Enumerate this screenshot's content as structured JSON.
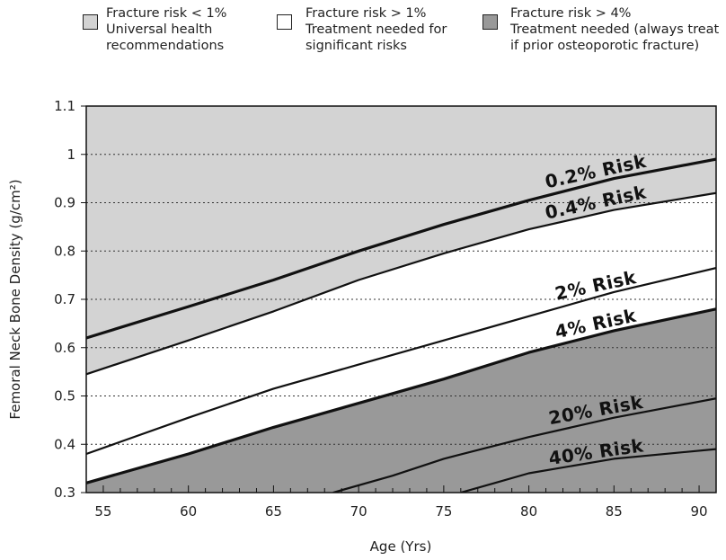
{
  "chart_data": {
    "type": "area",
    "xlabel": "Age (Yrs)",
    "ylabel": "Femoral Neck Bone Density (g/cm²)",
    "xlim": [
      54,
      91
    ],
    "ylim": [
      0.3,
      1.1
    ],
    "x_ticks": [
      55,
      60,
      65,
      70,
      75,
      80,
      85,
      90
    ],
    "x_tick_labels": [
      "55",
      "60",
      "65",
      "70",
      "75",
      "80",
      "85",
      "90"
    ],
    "y_ticks": [
      0.3,
      0.4,
      0.5,
      0.6,
      0.7,
      0.8,
      0.9,
      1,
      1.1
    ],
    "y_tick_labels": [
      "0.3",
      "0.4",
      "0.5",
      "0.6",
      "0.7",
      "0.8",
      "0.9",
      "1",
      "1.1"
    ],
    "grid": "horizontal dotted",
    "legend": [
      {
        "line1": "Fracture risk < 1%",
        "line2": "Universal health",
        "line3": "recommendations",
        "color": "#d3d3d3"
      },
      {
        "line1": "Fracture risk > 1%",
        "line2": "Treatment needed for",
        "line3": "significant risks",
        "color": "#ffffff"
      },
      {
        "line1": "Fracture risk > 4%",
        "line2": "Treatment needed (always treat",
        "line3": "if prior osteoporotic fracture)",
        "color": "#999999"
      }
    ],
    "colors": {
      "low": "#d3d3d3",
      "medium": "#ffffff",
      "high": "#999999",
      "line": "#111111"
    },
    "series": [
      {
        "name": "0.2% Risk",
        "label": "0.2% Risk",
        "x": [
          54,
          60,
          65,
          70,
          75,
          80,
          85,
          91
        ],
        "y": [
          0.62,
          0.685,
          0.74,
          0.8,
          0.855,
          0.905,
          0.95,
          0.99
        ]
      },
      {
        "name": "0.4% Risk",
        "label": "0.4% Risk",
        "x": [
          54,
          60,
          65,
          70,
          75,
          80,
          85,
          91
        ],
        "y": [
          0.545,
          0.615,
          0.675,
          0.74,
          0.795,
          0.845,
          0.885,
          0.92
        ]
      },
      {
        "name": "2% Risk",
        "label": "2% Risk",
        "x": [
          54,
          60,
          65,
          70,
          75,
          80,
          85,
          91
        ],
        "y": [
          0.38,
          0.455,
          0.515,
          0.565,
          0.615,
          0.665,
          0.715,
          0.765
        ]
      },
      {
        "name": "4% Risk",
        "label": "4% Risk",
        "x": [
          54,
          60,
          65,
          70,
          75,
          80,
          85,
          91
        ],
        "y": [
          0.32,
          0.38,
          0.435,
          0.485,
          0.535,
          0.59,
          0.635,
          0.68
        ]
      },
      {
        "name": "20% Risk",
        "label": "20% Risk",
        "x": [
          68.5,
          72,
          75,
          80,
          85,
          91
        ],
        "y": [
          0.3,
          0.335,
          0.37,
          0.415,
          0.455,
          0.495
        ]
      },
      {
        "name": "40% Risk",
        "label": "40% Risk",
        "x": [
          76,
          78,
          80,
          85,
          91
        ],
        "y": [
          0.3,
          0.32,
          0.34,
          0.37,
          0.39
        ]
      }
    ]
  }
}
